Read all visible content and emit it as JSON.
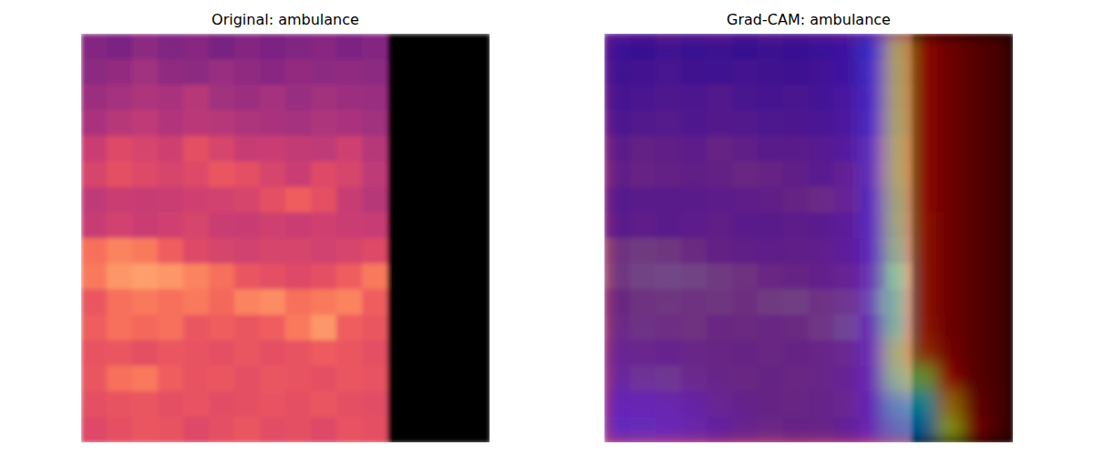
{
  "chart_data": [
    {
      "type": "heatmap",
      "title": "Original: ambulance",
      "color": "magma",
      "zlim": [
        0,
        1
      ],
      "tick_labels": false,
      "cells": [
        [
          0.38,
          0.36,
          0.4,
          0.37,
          0.39,
          0.35,
          0.38,
          0.36,
          0.37,
          0.39,
          0.36,
          0.38,
          0,
          0,
          0,
          0
        ],
        [
          0.4,
          0.42,
          0.45,
          0.41,
          0.4,
          0.43,
          0.41,
          0.39,
          0.42,
          0.4,
          0.41,
          0.4,
          0,
          0,
          0,
          0
        ],
        [
          0.44,
          0.46,
          0.48,
          0.47,
          0.5,
          0.45,
          0.44,
          0.46,
          0.43,
          0.45,
          0.44,
          0.43,
          0,
          0,
          0,
          0
        ],
        [
          0.47,
          0.5,
          0.52,
          0.49,
          0.51,
          0.5,
          0.48,
          0.47,
          0.46,
          0.48,
          0.47,
          0.45,
          0,
          0,
          0,
          0
        ],
        [
          0.55,
          0.6,
          0.58,
          0.56,
          0.62,
          0.58,
          0.54,
          0.55,
          0.53,
          0.52,
          0.56,
          0.5,
          0,
          0,
          0,
          0
        ],
        [
          0.58,
          0.62,
          0.6,
          0.58,
          0.6,
          0.64,
          0.62,
          0.58,
          0.55,
          0.6,
          0.58,
          0.52,
          0,
          0,
          0,
          0
        ],
        [
          0.52,
          0.55,
          0.54,
          0.55,
          0.56,
          0.57,
          0.58,
          0.62,
          0.66,
          0.62,
          0.54,
          0.5,
          0,
          0,
          0,
          0
        ],
        [
          0.54,
          0.57,
          0.55,
          0.56,
          0.58,
          0.55,
          0.54,
          0.56,
          0.55,
          0.56,
          0.55,
          0.54,
          0,
          0,
          0,
          0
        ],
        [
          0.7,
          0.74,
          0.72,
          0.66,
          0.6,
          0.58,
          0.57,
          0.58,
          0.58,
          0.57,
          0.58,
          0.6,
          0,
          0,
          0,
          0
        ],
        [
          0.72,
          0.78,
          0.8,
          0.78,
          0.74,
          0.7,
          0.64,
          0.62,
          0.6,
          0.62,
          0.66,
          0.72,
          0,
          0,
          0,
          0
        ],
        [
          0.64,
          0.7,
          0.72,
          0.7,
          0.72,
          0.68,
          0.74,
          0.76,
          0.7,
          0.72,
          0.74,
          0.66,
          0,
          0,
          0,
          0
        ],
        [
          0.66,
          0.7,
          0.68,
          0.7,
          0.64,
          0.66,
          0.64,
          0.66,
          0.72,
          0.78,
          0.66,
          0.64,
          0,
          0,
          0,
          0
        ],
        [
          0.63,
          0.64,
          0.62,
          0.64,
          0.63,
          0.62,
          0.64,
          0.62,
          0.63,
          0.65,
          0.64,
          0.62,
          0,
          0,
          0,
          0
        ],
        [
          0.64,
          0.7,
          0.72,
          0.66,
          0.63,
          0.64,
          0.62,
          0.64,
          0.63,
          0.62,
          0.64,
          0.63,
          0,
          0,
          0,
          0
        ],
        [
          0.62,
          0.63,
          0.64,
          0.62,
          0.63,
          0.61,
          0.62,
          0.63,
          0.62,
          0.64,
          0.62,
          0.61,
          0,
          0,
          0,
          0
        ],
        [
          0.6,
          0.62,
          0.64,
          0.63,
          0.6,
          0.62,
          0.64,
          0.61,
          0.62,
          0.6,
          0.63,
          0.62,
          0,
          0,
          0,
          0
        ]
      ]
    },
    {
      "type": "heatmap",
      "title": "Grad-CAM: ambulance",
      "color": "jet",
      "zlim": [
        0,
        1
      ],
      "tick_labels": false,
      "cells": [
        [
          0.04,
          0.03,
          0.03,
          0.03,
          0.03,
          0.03,
          0.03,
          0.03,
          0.04,
          0.06,
          0.18,
          0.58,
          0.86,
          0.93,
          0.97,
          1.0
        ],
        [
          0.03,
          0.03,
          0.03,
          0.03,
          0.03,
          0.03,
          0.03,
          0.03,
          0.04,
          0.06,
          0.17,
          0.57,
          0.86,
          0.93,
          0.97,
          1.0
        ],
        [
          0.03,
          0.03,
          0.03,
          0.03,
          0.03,
          0.03,
          0.03,
          0.03,
          0.04,
          0.06,
          0.16,
          0.56,
          0.86,
          0.93,
          0.97,
          1.0
        ],
        [
          0.03,
          0.03,
          0.03,
          0.03,
          0.03,
          0.03,
          0.03,
          0.03,
          0.04,
          0.06,
          0.16,
          0.55,
          0.86,
          0.93,
          0.97,
          1.0
        ],
        [
          0.03,
          0.03,
          0.03,
          0.03,
          0.03,
          0.03,
          0.03,
          0.03,
          0.04,
          0.06,
          0.16,
          0.55,
          0.86,
          0.93,
          0.97,
          1.0
        ],
        [
          0.03,
          0.03,
          0.03,
          0.03,
          0.03,
          0.03,
          0.03,
          0.03,
          0.04,
          0.06,
          0.15,
          0.54,
          0.86,
          0.93,
          0.97,
          1.0
        ],
        [
          0.03,
          0.03,
          0.03,
          0.03,
          0.03,
          0.03,
          0.03,
          0.03,
          0.04,
          0.06,
          0.15,
          0.52,
          0.86,
          0.93,
          0.97,
          1.0
        ],
        [
          0.03,
          0.03,
          0.03,
          0.03,
          0.03,
          0.03,
          0.03,
          0.03,
          0.04,
          0.06,
          0.15,
          0.5,
          0.85,
          0.93,
          0.97,
          1.0
        ],
        [
          0.03,
          0.03,
          0.03,
          0.03,
          0.03,
          0.03,
          0.03,
          0.03,
          0.04,
          0.06,
          0.14,
          0.46,
          0.85,
          0.93,
          0.97,
          1.0
        ],
        [
          0.03,
          0.03,
          0.03,
          0.03,
          0.03,
          0.03,
          0.03,
          0.03,
          0.04,
          0.06,
          0.14,
          0.42,
          0.85,
          0.93,
          0.97,
          1.0
        ],
        [
          0.03,
          0.03,
          0.03,
          0.03,
          0.03,
          0.03,
          0.03,
          0.03,
          0.04,
          0.06,
          0.14,
          0.42,
          0.85,
          0.93,
          0.97,
          1.0
        ],
        [
          0.04,
          0.04,
          0.04,
          0.03,
          0.03,
          0.03,
          0.03,
          0.03,
          0.04,
          0.06,
          0.14,
          0.42,
          0.84,
          0.93,
          0.97,
          1.0
        ],
        [
          0.06,
          0.05,
          0.05,
          0.04,
          0.03,
          0.03,
          0.03,
          0.03,
          0.04,
          0.06,
          0.14,
          0.5,
          0.8,
          0.92,
          0.97,
          1.0
        ],
        [
          0.08,
          0.07,
          0.06,
          0.05,
          0.04,
          0.03,
          0.03,
          0.03,
          0.04,
          0.06,
          0.13,
          0.45,
          0.55,
          0.88,
          0.97,
          1.0
        ],
        [
          0.12,
          0.12,
          0.11,
          0.09,
          0.06,
          0.04,
          0.03,
          0.03,
          0.04,
          0.06,
          0.12,
          0.3,
          0.35,
          0.7,
          0.95,
          1.0
        ],
        [
          0.14,
          0.14,
          0.13,
          0.1,
          0.07,
          0.05,
          0.04,
          0.03,
          0.04,
          0.06,
          0.12,
          0.25,
          0.28,
          0.6,
          0.93,
          1.0
        ]
      ]
    }
  ]
}
